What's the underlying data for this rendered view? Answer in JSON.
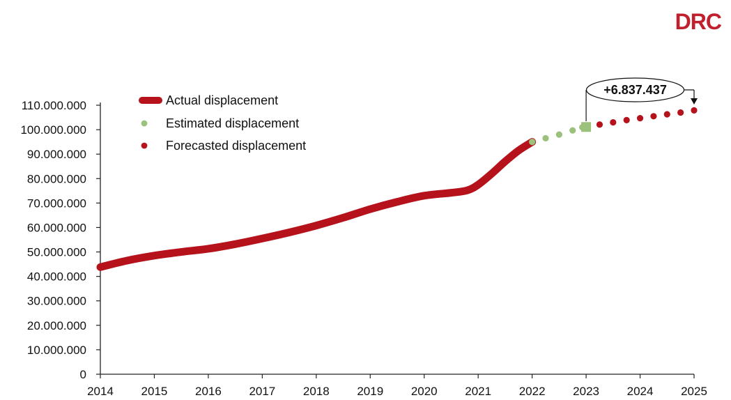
{
  "logo": {
    "text": "DRC",
    "color": "#c0202e"
  },
  "chart_data": {
    "type": "line",
    "title": "",
    "xlabel": "",
    "ylabel": "",
    "xlim": [
      2014,
      2025
    ],
    "ylim": [
      0,
      110000000
    ],
    "x_ticks": [
      2014,
      2015,
      2016,
      2017,
      2018,
      2019,
      2020,
      2021,
      2022,
      2023,
      2024,
      2025
    ],
    "y_ticks": [
      0,
      10000000,
      20000000,
      30000000,
      40000000,
      50000000,
      60000000,
      70000000,
      80000000,
      90000000,
      100000000,
      110000000
    ],
    "y_tick_labels": [
      "0",
      "10.000.000",
      "20.000.000",
      "30.000.000",
      "40.000.000",
      "50.000.000",
      "60.000.000",
      "70.000.000",
      "80.000.000",
      "90.000.000",
      "100.000.000",
      "110.000.000"
    ],
    "grid": false,
    "legend_position": "top-left",
    "series": [
      {
        "name": "Actual displacement",
        "style": "thick-line",
        "color": "#b5121b",
        "points": [
          [
            2014,
            43800000
          ],
          [
            2014.5,
            46500000
          ],
          [
            2015,
            48500000
          ],
          [
            2015.5,
            50000000
          ],
          [
            2016,
            51300000
          ],
          [
            2016.5,
            53200000
          ],
          [
            2017,
            55500000
          ],
          [
            2017.5,
            58000000
          ],
          [
            2018,
            60800000
          ],
          [
            2018.5,
            64000000
          ],
          [
            2019,
            67500000
          ],
          [
            2019.5,
            70500000
          ],
          [
            2020,
            73000000
          ],
          [
            2020.5,
            74200000
          ],
          [
            2020.8,
            75200000
          ],
          [
            2021,
            77500000
          ],
          [
            2021.25,
            82000000
          ],
          [
            2021.5,
            87000000
          ],
          [
            2021.75,
            91500000
          ],
          [
            2022,
            95000000
          ]
        ]
      },
      {
        "name": "Estimated displacement",
        "style": "dotted",
        "color": "#9bc17c",
        "points": [
          [
            2022,
            95000000
          ],
          [
            2022.25,
            96500000
          ],
          [
            2022.5,
            98000000
          ],
          [
            2022.75,
            99700000
          ],
          [
            2022.93,
            101000000
          ]
        ],
        "end_marker": {
          "x": 2023,
          "y": 101100000,
          "shape": "square"
        }
      },
      {
        "name": "Forecasted displacement",
        "style": "dotted",
        "color": "#b5121b",
        "points": [
          [
            2023.25,
            102100000
          ],
          [
            2023.5,
            103000000
          ],
          [
            2023.75,
            103900000
          ],
          [
            2024,
            104700000
          ],
          [
            2024.25,
            105500000
          ],
          [
            2024.5,
            106300000
          ],
          [
            2024.75,
            107000000
          ],
          [
            2025,
            107900000
          ]
        ]
      }
    ],
    "annotation": {
      "text": "+6.837.437",
      "from_x": 2023,
      "to_x": 2025
    }
  }
}
